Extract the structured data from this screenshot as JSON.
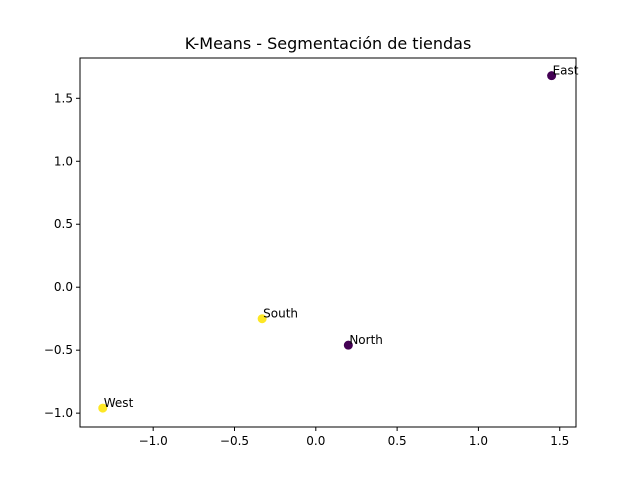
{
  "chart_data": {
    "type": "scatter",
    "title": "K-Means - Segmentación de tiendas",
    "xlabel": "",
    "ylabel": "",
    "xlim": [
      -1.45,
      1.6
    ],
    "ylim": [
      -1.11,
      1.82
    ],
    "x_ticks": [
      -1.0,
      -0.5,
      0.0,
      0.5,
      1.0,
      1.5
    ],
    "x_tick_labels": [
      "−1.0",
      "−0.5",
      "0.0",
      "0.5",
      "1.0",
      "1.5"
    ],
    "y_ticks": [
      -1.0,
      -0.5,
      0.0,
      0.5,
      1.0,
      1.5
    ],
    "y_tick_labels": [
      "−1.0",
      "−0.5",
      "0.0",
      "0.5",
      "1.0",
      "1.5"
    ],
    "grid": false,
    "cluster_colors": [
      "#440154",
      "#fde725"
    ],
    "points": [
      {
        "label": "East",
        "x": 1.45,
        "y": 1.68,
        "cluster": 0
      },
      {
        "label": "South",
        "x": -0.33,
        "y": -0.25,
        "cluster": 1
      },
      {
        "label": "North",
        "x": 0.2,
        "y": -0.46,
        "cluster": 0
      },
      {
        "label": "West",
        "x": -1.31,
        "y": -0.96,
        "cluster": 1
      }
    ]
  }
}
